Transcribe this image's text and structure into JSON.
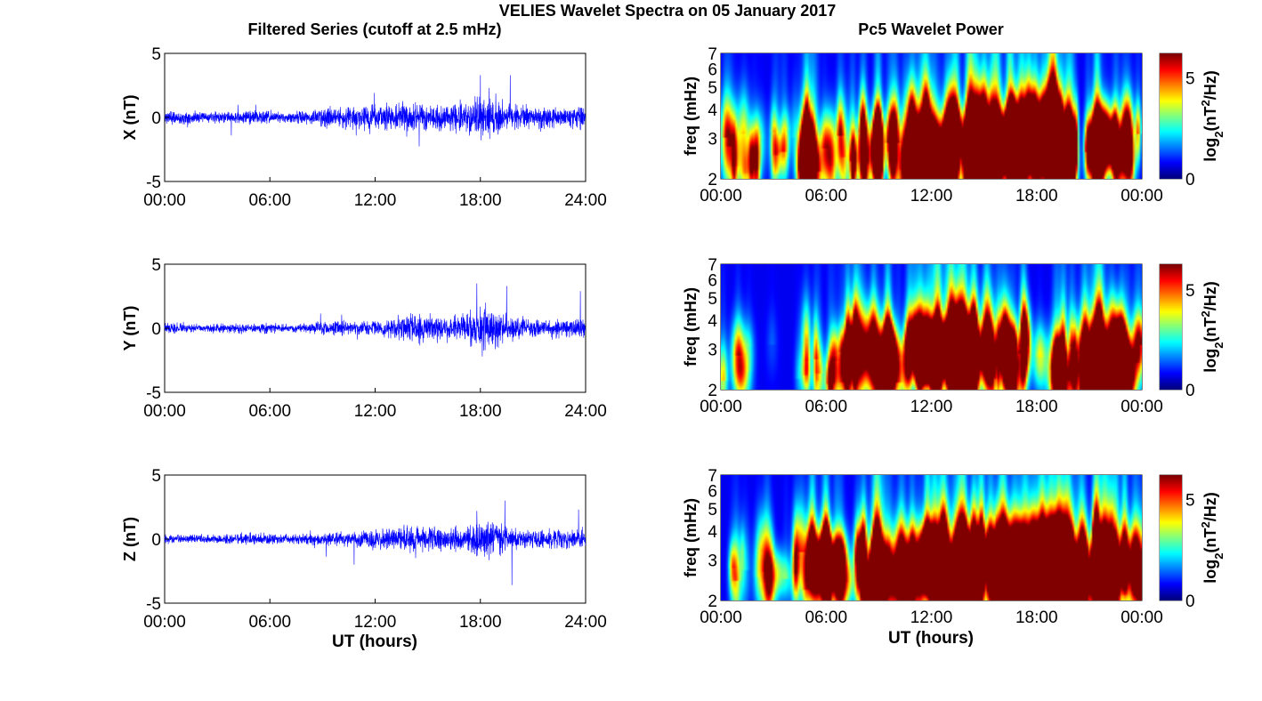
{
  "title": "VELIES Wavelet Spectra on 05 January 2017",
  "left_title": "Filtered Series (cutoff at 2.5 mHz)",
  "right_title": "Pc5 Wavelet Power",
  "xlabel": "UT (hours)",
  "chart_data": [
    {
      "type": "line",
      "component": "X",
      "ylabel": "X (nT)",
      "ylim": [
        -5,
        5
      ],
      "yticks": [
        "5",
        "0",
        "-5"
      ],
      "xticks": [
        "00:00",
        "06:00",
        "12:00",
        "18:00",
        "24:00"
      ],
      "xlim_hours": [
        0,
        24
      ],
      "color": "#0000ff",
      "envelope_nT_hourly": [
        0.3,
        0.3,
        0.25,
        0.25,
        0.25,
        0.3,
        0.3,
        0.25,
        0.3,
        0.4,
        0.45,
        0.5,
        0.6,
        0.6,
        0.7,
        0.6,
        0.55,
        0.7,
        1.0,
        0.8,
        0.6,
        0.5,
        0.5,
        0.5
      ],
      "spikes": [
        {
          "hour": 18.0,
          "value": 3.3
        },
        {
          "hour": 18.5,
          "value": 2.3
        },
        {
          "hour": 19.7,
          "value": 3.3
        },
        {
          "hour": 13.8,
          "value": -1.5
        },
        {
          "hour": 3.8,
          "value": -1.4
        },
        {
          "hour": 11.7,
          "value": -1.3
        }
      ]
    },
    {
      "type": "line",
      "component": "Y",
      "ylabel": "Y (nT)",
      "ylim": [
        -5,
        5
      ],
      "yticks": [
        "5",
        "0",
        "-5"
      ],
      "xticks": [
        "00:00",
        "06:00",
        "12:00",
        "18:00",
        "24:00"
      ],
      "xlim_hours": [
        0,
        24
      ],
      "color": "#0000ff",
      "envelope_nT_hourly": [
        0.25,
        0.2,
        0.2,
        0.2,
        0.2,
        0.2,
        0.25,
        0.2,
        0.2,
        0.3,
        0.35,
        0.3,
        0.4,
        0.4,
        0.7,
        0.7,
        0.5,
        0.6,
        1.1,
        0.7,
        0.5,
        0.4,
        0.4,
        0.4
      ],
      "spikes": [
        {
          "hour": 17.8,
          "value": 3.5
        },
        {
          "hour": 19.5,
          "value": 3.3
        },
        {
          "hour": 23.7,
          "value": 2.9
        },
        {
          "hour": 14.5,
          "value": -1.2
        },
        {
          "hour": 18.3,
          "value": 2.0
        }
      ]
    },
    {
      "type": "line",
      "component": "Z",
      "ylabel": "Z (nT)",
      "ylim": [
        -5,
        5
      ],
      "yticks": [
        "5",
        "0",
        "-5"
      ],
      "xticks": [
        "00:00",
        "06:00",
        "12:00",
        "18:00",
        "24:00"
      ],
      "xlim_hours": [
        0,
        24
      ],
      "color": "#0000ff",
      "envelope_nT_hourly": [
        0.2,
        0.2,
        0.2,
        0.2,
        0.25,
        0.25,
        0.25,
        0.2,
        0.25,
        0.3,
        0.35,
        0.4,
        0.45,
        0.5,
        0.6,
        0.55,
        0.5,
        0.55,
        0.9,
        0.7,
        0.5,
        0.45,
        0.45,
        0.45
      ],
      "spikes": [
        {
          "hour": 17.8,
          "value": 2.2
        },
        {
          "hour": 19.4,
          "value": 3.0
        },
        {
          "hour": 19.8,
          "value": -3.6
        },
        {
          "hour": 10.8,
          "value": -2.0
        },
        {
          "hour": 23.6,
          "value": 2.3
        }
      ]
    },
    {
      "type": "heatmap",
      "component": "X",
      "ylabel": "freq (mHz)",
      "yscale": "log",
      "ylim": [
        2,
        7
      ],
      "yticks": [
        "2",
        "3",
        "4",
        "5",
        "6",
        "7"
      ],
      "xticks": [
        "00:00",
        "06:00",
        "12:00",
        "18:00",
        "00:00"
      ],
      "colormap": "jet",
      "clim": [
        0,
        6.2
      ],
      "cticks": [
        "0",
        "5"
      ],
      "clabel": "log2(nT2/Hz)",
      "activity_hourly": [
        0.5,
        0.4,
        0.4,
        0.3,
        0.3,
        0.7,
        0.8,
        0.5,
        0.5,
        0.8,
        0.6,
        0.6,
        1,
        1,
        0.9,
        0.9,
        0.8,
        0.9,
        1,
        0.9,
        0.8,
        0.9,
        0.9,
        0.6
      ]
    },
    {
      "type": "heatmap",
      "component": "Y",
      "ylabel": "freq (mHz)",
      "yscale": "log",
      "ylim": [
        2,
        7
      ],
      "yticks": [
        "2",
        "3",
        "4",
        "5",
        "6",
        "7"
      ],
      "xticks": [
        "00:00",
        "06:00",
        "12:00",
        "18:00",
        "00:00"
      ],
      "colormap": "jet",
      "clim": [
        0,
        6.3
      ],
      "cticks": [
        "0",
        "5"
      ],
      "clabel": "log2(nT2/Hz)",
      "activity_hourly": [
        0.45,
        0.35,
        0.2,
        0.1,
        0.1,
        0.4,
        0.45,
        0.6,
        0.6,
        0.8,
        0.5,
        0.5,
        0.85,
        0.9,
        0.9,
        0.8,
        0.7,
        0.7,
        0.7,
        0.7,
        0.6,
        0.8,
        0.8,
        0.6
      ]
    },
    {
      "type": "heatmap",
      "component": "Z",
      "ylabel": "freq (mHz)",
      "yscale": "log",
      "ylim": [
        2,
        7
      ],
      "yticks": [
        "2",
        "3",
        "4",
        "5",
        "6",
        "7"
      ],
      "xticks": [
        "00:00",
        "06:00",
        "12:00",
        "18:00",
        "00:00"
      ],
      "colormap": "jet",
      "clim": [
        0,
        6.2
      ],
      "cticks": [
        "0",
        "5"
      ],
      "clabel": "log2(nT2/Hz)",
      "activity_hourly": [
        0.5,
        0.4,
        0.4,
        0.3,
        0.3,
        0.7,
        0.8,
        0.5,
        0.5,
        0.8,
        0.6,
        0.6,
        1,
        1,
        0.9,
        0.9,
        0.8,
        0.9,
        1,
        0.9,
        0.8,
        0.9,
        0.9,
        0.6
      ]
    }
  ]
}
